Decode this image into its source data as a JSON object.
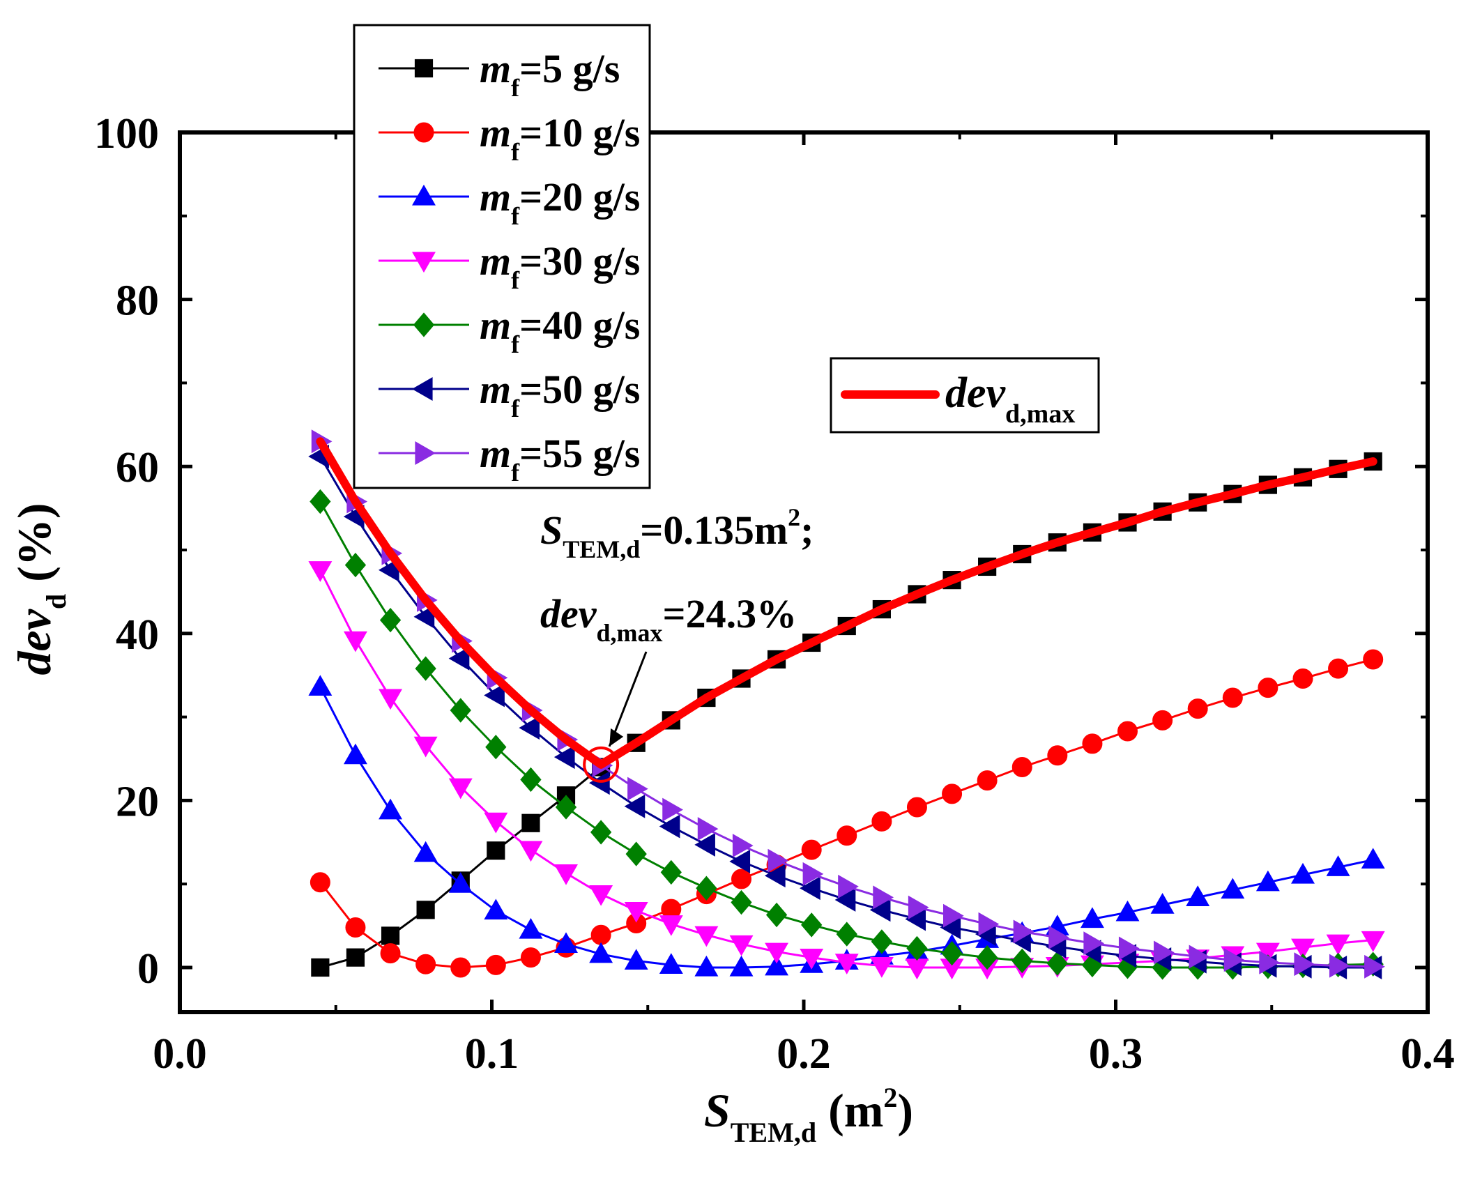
{
  "chart_data": {
    "type": "line",
    "title": "",
    "xlabel": {
      "main": "S",
      "sub": "TEM,d",
      "unit_open": " (m",
      "unit_sup": "2",
      "unit_close": ")"
    },
    "ylabel": {
      "main": "dev",
      "sub": "d",
      "unit": " (%)"
    },
    "xlim": [
      0.0,
      0.4
    ],
    "ylim": [
      -5,
      100
    ],
    "xticks": [
      0.0,
      0.1,
      0.2,
      0.3,
      0.4
    ],
    "xtick_labels": [
      "0.0",
      "0.1",
      "0.2",
      "0.3",
      "0.4"
    ],
    "yticks": [
      0,
      20,
      40,
      60,
      80,
      100
    ],
    "ytick_labels": [
      "0",
      "20",
      "40",
      "60",
      "80",
      "100"
    ],
    "grid": false,
    "x": [
      0.045,
      0.0563,
      0.0675,
      0.0788,
      0.09,
      0.1013,
      0.1125,
      0.1238,
      0.135,
      0.1463,
      0.1575,
      0.1688,
      0.18,
      0.1913,
      0.2025,
      0.2138,
      0.225,
      0.2363,
      0.2475,
      0.2588,
      0.27,
      0.2813,
      0.2925,
      0.3038,
      0.315,
      0.3263,
      0.3375,
      0.3488,
      0.36,
      0.3713,
      0.3825
    ],
    "series": [
      {
        "name": "m_f=5 g/s",
        "label_main": "m",
        "label_sub": "f",
        "label_rest": "=5 g/s",
        "color": "#000000",
        "marker": "square",
        "values": [
          0.0,
          1.2,
          3.8,
          6.9,
          10.4,
          14.0,
          17.3,
          20.6,
          24.0,
          26.9,
          29.6,
          32.3,
          34.6,
          36.9,
          38.9,
          40.9,
          42.9,
          44.7,
          46.4,
          48.0,
          49.5,
          50.9,
          52.1,
          53.3,
          54.6,
          55.7,
          56.7,
          57.8,
          58.7,
          59.7,
          60.6
        ]
      },
      {
        "name": "m_f=10 g/s",
        "label_main": "m",
        "label_sub": "f",
        "label_rest": "=10 g/s",
        "color": "#ff0000",
        "marker": "circle",
        "values": [
          10.2,
          4.8,
          1.7,
          0.4,
          0.0,
          0.3,
          1.2,
          2.4,
          3.9,
          5.3,
          7.0,
          8.8,
          10.6,
          12.3,
          14.1,
          15.8,
          17.5,
          19.2,
          20.8,
          22.4,
          24.0,
          25.4,
          26.8,
          28.3,
          29.6,
          31.0,
          32.3,
          33.5,
          34.6,
          35.8,
          36.9
        ]
      },
      {
        "name": "m_f=20 g/s",
        "label_main": "m",
        "label_sub": "f",
        "label_rest": "=20 g/s",
        "color": "#0000ff",
        "marker": "triangle-up",
        "values": [
          33.6,
          25.4,
          18.8,
          13.7,
          10.0,
          6.8,
          4.5,
          2.8,
          1.6,
          0.8,
          0.3,
          0.0,
          0.0,
          0.1,
          0.4,
          0.8,
          1.4,
          1.9,
          2.6,
          3.4,
          4.1,
          4.9,
          5.8,
          6.6,
          7.5,
          8.4,
          9.3,
          10.2,
          11.1,
          12.0,
          12.9
        ]
      },
      {
        "name": "m_f=30 g/s",
        "label_main": "m",
        "label_sub": "f",
        "label_rest": "=30 g/s",
        "color": "#ff00ff",
        "marker": "triangle-down",
        "values": [
          47.6,
          39.2,
          32.3,
          26.6,
          21.6,
          17.5,
          14.1,
          11.3,
          8.8,
          6.8,
          5.2,
          3.9,
          2.8,
          1.9,
          1.2,
          0.6,
          0.2,
          0.0,
          0.0,
          0.0,
          0.1,
          0.2,
          0.4,
          0.6,
          0.8,
          1.1,
          1.5,
          1.9,
          2.4,
          2.9,
          3.3
        ]
      },
      {
        "name": "m_f=40 g/s",
        "label_main": "m",
        "label_sub": "f",
        "label_rest": "=40 g/s",
        "color": "#008000",
        "marker": "diamond",
        "values": [
          55.8,
          48.2,
          41.6,
          35.8,
          30.8,
          26.4,
          22.5,
          19.2,
          16.2,
          13.6,
          11.4,
          9.5,
          7.8,
          6.3,
          5.1,
          4.0,
          3.1,
          2.3,
          1.7,
          1.2,
          0.8,
          0.5,
          0.3,
          0.1,
          0.0,
          0.0,
          0.0,
          0.1,
          0.2,
          0.3,
          0.4
        ]
      },
      {
        "name": "m_f=50 g/s",
        "label_main": "m",
        "label_sub": "f",
        "label_rest": "=50 g/s",
        "color": "#00008b",
        "marker": "triangle-left",
        "values": [
          61.2,
          54.0,
          47.6,
          42.0,
          37.0,
          32.6,
          28.7,
          25.2,
          22.1,
          19.3,
          16.9,
          14.7,
          12.7,
          11.0,
          9.5,
          8.1,
          6.9,
          5.8,
          4.8,
          4.0,
          3.2,
          2.5,
          1.9,
          1.4,
          1.0,
          0.7,
          0.4,
          0.2,
          0.1,
          0.0,
          0.0
        ]
      },
      {
        "name": "m_f=55 g/s",
        "label_main": "m",
        "label_sub": "f",
        "label_rest": "=55 g/s",
        "color": "#8a2be2",
        "marker": "triangle-right",
        "values": [
          63.0,
          55.8,
          49.6,
          44.0,
          39.1,
          34.7,
          30.8,
          27.3,
          24.2,
          21.4,
          18.9,
          16.6,
          14.6,
          12.8,
          11.2,
          9.7,
          8.4,
          7.2,
          6.2,
          5.2,
          4.3,
          3.6,
          2.9,
          2.3,
          1.8,
          1.3,
          0.9,
          0.6,
          0.4,
          0.2,
          0.1
        ]
      }
    ],
    "envelope": {
      "name": "dev_d,max",
      "label_main": "dev",
      "label_sub": "d,max",
      "color": "#ff0000",
      "x": [
        0.045,
        0.0563,
        0.0675,
        0.0788,
        0.09,
        0.1013,
        0.1125,
        0.1238,
        0.135,
        0.1463,
        0.1575,
        0.1688,
        0.18,
        0.1913,
        0.2025,
        0.2138,
        0.225,
        0.2363,
        0.2475,
        0.2588,
        0.27,
        0.2813,
        0.2925,
        0.3038,
        0.315,
        0.3263,
        0.3375,
        0.3488,
        0.36,
        0.3713,
        0.3825
      ],
      "values": [
        63.0,
        55.8,
        49.6,
        44.0,
        39.1,
        34.7,
        30.8,
        27.3,
        24.3,
        26.9,
        29.6,
        32.3,
        34.6,
        36.9,
        38.9,
        40.9,
        42.9,
        44.7,
        46.4,
        48.0,
        49.5,
        50.9,
        52.1,
        53.3,
        54.6,
        55.7,
        56.7,
        57.8,
        58.7,
        59.7,
        60.6
      ]
    },
    "annotation": {
      "x": 0.135,
      "y": 24.3,
      "line1_main": "S",
      "line1_sub": "TEM,d",
      "line1_rest": "=0.135m",
      "line1_sup": "2",
      "line1_tail": ";",
      "line2_main": "dev",
      "line2_sub": "d,max",
      "line2_rest": "=24.3%"
    },
    "legend_placement": "top-left (outside top edge)",
    "legend2_placement": "right-middle"
  }
}
